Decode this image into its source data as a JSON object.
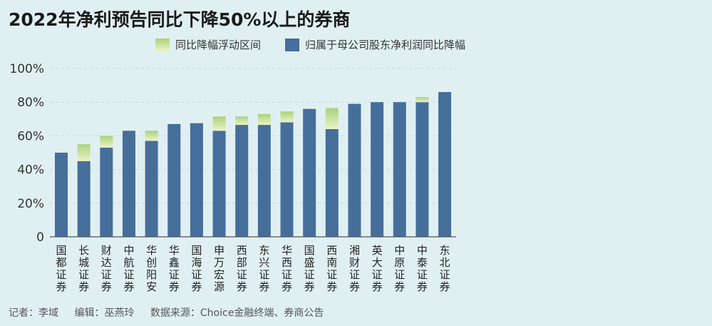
{
  "title": "2022年净利预告同比下降50%以上的券商",
  "legend": {
    "band_label": "同比降幅浮动区间",
    "bar_label": "归属于母公司股东净利润同比降幅"
  },
  "footer": {
    "reporter": "记者：李域",
    "editor": "编辑：巫燕玲",
    "source": "数据来源：Choice金融终端、券商公告"
  },
  "colors": {
    "bar": "#466e9b",
    "band_top": "#a9d27d",
    "band_bottom": "#edf3c4",
    "axis": "#555555",
    "grid": "#c3d6dc",
    "background": "#e0f0f2"
  },
  "chart_data": {
    "type": "bar",
    "stacked": true,
    "categories": [
      "国都证券",
      "长城证券",
      "财达证券",
      "中航证券",
      "华创阳安",
      "华鑫证券",
      "国海证券",
      "申万宏源",
      "西部证券",
      "东兴证券",
      "华西证券",
      "国盛证券",
      "西南证券",
      "湘财证券",
      "英大证券",
      "中原证券",
      "中泰证券",
      "东北证券"
    ],
    "series": [
      {
        "name": "归属于母公司股东净利润同比降幅",
        "values": [
          50,
          45,
          53,
          63,
          57,
          67,
          67.5,
          63,
          66.5,
          66.5,
          68,
          76,
          64,
          79,
          80,
          80,
          80,
          86
        ]
      },
      {
        "name": "同比降幅浮动区间",
        "values": [
          0,
          10,
          7,
          0,
          6,
          0,
          0,
          8.5,
          5,
          6.5,
          6.5,
          0,
          12.5,
          0,
          0,
          0,
          3,
          0
        ]
      }
    ],
    "ylim": [
      0,
      100
    ],
    "yticks": [
      "0",
      "20%",
      "40%",
      "60%",
      "80%",
      "100%"
    ],
    "grid": "horizontal dashed"
  }
}
